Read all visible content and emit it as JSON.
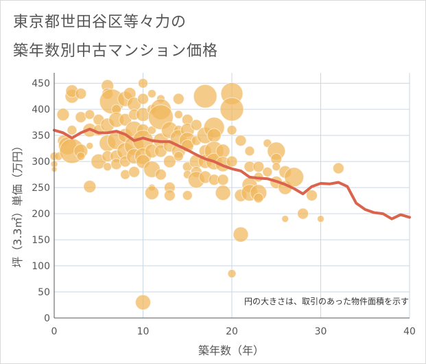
{
  "title_line1": "東京都世田谷区等々力の",
  "title_line2": "築年数別中古マンション価格",
  "chart_data": {
    "type": "scatter",
    "xlabel": "築年数（年）",
    "ylabel": "坪（3.3㎡）単価（万円）",
    "xlim": [
      0,
      40
    ],
    "ylim": [
      0,
      470
    ],
    "xticks": [
      0,
      10,
      20,
      30,
      40
    ],
    "yticks": [
      0,
      50,
      100,
      150,
      200,
      250,
      300,
      350,
      400,
      450
    ],
    "grid": true,
    "note": "円の大きさは、取引のあった物件面積を示す",
    "colors": {
      "bubble": "#f0b75b",
      "line": "#d9634c",
      "grid": "#c9d6e6",
      "axis": "#555555"
    },
    "series": [
      {
        "type": "scatter",
        "points": [
          [
            0,
            310,
            6
          ],
          [
            0,
            295,
            5
          ],
          [
            0,
            285,
            4
          ],
          [
            0.5,
            310,
            6
          ],
          [
            1,
            390,
            9
          ],
          [
            1,
            340,
            8
          ],
          [
            1.5,
            330,
            13
          ],
          [
            2,
            425,
            10
          ],
          [
            2,
            435,
            9
          ],
          [
            2,
            360,
            7
          ],
          [
            2,
            320,
            18
          ],
          [
            3,
            430,
            8
          ],
          [
            3,
            385,
            8
          ],
          [
            3,
            320,
            10
          ],
          [
            3,
            310,
            6
          ],
          [
            4,
            390,
            7
          ],
          [
            4,
            360,
            10
          ],
          [
            4,
            330,
            5
          ],
          [
            4,
            252,
            9
          ],
          [
            5,
            380,
            8
          ],
          [
            5,
            300,
            11
          ],
          [
            5,
            360,
            8
          ],
          [
            6,
            445,
            9
          ],
          [
            6,
            430,
            8
          ],
          [
            6,
            370,
            10
          ],
          [
            6,
            335,
            12
          ],
          [
            6,
            310,
            8
          ],
          [
            6,
            290,
            6
          ],
          [
            6.5,
            415,
            18
          ],
          [
            7,
            400,
            7
          ],
          [
            7,
            380,
            11
          ],
          [
            7,
            340,
            13
          ],
          [
            7,
            310,
            9
          ],
          [
            7,
            295,
            8
          ],
          [
            8,
            420,
            11
          ],
          [
            8,
            380,
            9
          ],
          [
            8,
            350,
            10
          ],
          [
            8,
            320,
            12
          ],
          [
            8,
            300,
            8
          ],
          [
            8,
            275,
            7
          ],
          [
            8.5,
            430,
            9
          ],
          [
            9,
            410,
            10
          ],
          [
            9,
            390,
            8
          ],
          [
            9,
            360,
            13
          ],
          [
            9,
            330,
            14
          ],
          [
            9,
            310,
            11
          ],
          [
            9,
            280,
            8
          ],
          [
            10,
            450,
            7
          ],
          [
            10,
            420,
            8
          ],
          [
            10,
            390,
            10
          ],
          [
            10,
            360,
            9
          ],
          [
            10,
            340,
            15
          ],
          [
            10,
            310,
            12
          ],
          [
            10,
            300,
            10
          ],
          [
            10,
            30,
            11
          ],
          [
            11,
            430,
            6
          ],
          [
            11,
            400,
            7
          ],
          [
            11,
            360,
            6
          ],
          [
            11,
            320,
            10
          ],
          [
            11,
            285,
            12
          ],
          [
            11,
            250,
            5
          ],
          [
            11,
            240,
            10
          ],
          [
            12,
            420,
            6
          ],
          [
            12,
            400,
            15
          ],
          [
            12,
            385,
            18
          ],
          [
            12,
            340,
            11
          ],
          [
            12,
            320,
            9
          ],
          [
            12,
            275,
            8
          ],
          [
            13,
            360,
            12
          ],
          [
            13,
            330,
            9
          ],
          [
            13,
            300,
            9
          ],
          [
            13,
            250,
            8
          ],
          [
            13,
            235,
            8
          ],
          [
            14,
            420,
            8
          ],
          [
            14,
            390,
            6
          ],
          [
            14,
            360,
            7
          ],
          [
            14,
            345,
            12
          ],
          [
            14,
            320,
            10
          ],
          [
            14,
            310,
            7
          ],
          [
            15,
            380,
            8
          ],
          [
            15,
            360,
            10
          ],
          [
            15,
            340,
            12
          ],
          [
            15,
            330,
            9
          ],
          [
            15,
            290,
            7
          ],
          [
            15,
            275,
            6
          ],
          [
            15,
            235,
            7
          ],
          [
            16,
            370,
            8
          ],
          [
            16,
            340,
            7
          ],
          [
            16,
            300,
            10
          ],
          [
            16,
            280,
            8
          ],
          [
            16,
            265,
            12
          ],
          [
            17,
            425,
            17
          ],
          [
            17,
            350,
            12
          ],
          [
            17,
            320,
            9
          ],
          [
            17,
            300,
            10
          ],
          [
            17,
            270,
            9
          ],
          [
            18,
            365,
            15
          ],
          [
            18,
            350,
            10
          ],
          [
            18,
            320,
            14
          ],
          [
            18,
            300,
            12
          ],
          [
            18,
            265,
            8
          ],
          [
            19,
            320,
            10
          ],
          [
            19,
            295,
            11
          ],
          [
            19,
            265,
            8
          ],
          [
            19,
            240,
            11
          ],
          [
            20,
            430,
            16
          ],
          [
            20,
            400,
            17
          ],
          [
            20,
            360,
            7
          ],
          [
            20,
            300,
            8
          ],
          [
            20,
            85,
            6
          ],
          [
            21,
            340,
            8
          ],
          [
            21,
            235,
            9
          ],
          [
            21,
            160,
            11
          ],
          [
            22,
            320,
            7
          ],
          [
            22,
            290,
            8
          ],
          [
            22,
            255,
            11
          ],
          [
            22,
            240,
            12
          ],
          [
            23,
            290,
            8
          ],
          [
            23,
            270,
            7
          ],
          [
            23,
            240,
            12
          ],
          [
            23,
            230,
            7
          ],
          [
            24,
            335,
            6
          ],
          [
            24,
            280,
            7
          ],
          [
            25,
            320,
            13
          ],
          [
            25,
            305,
            8
          ],
          [
            25,
            290,
            6
          ],
          [
            25,
            260,
            9
          ],
          [
            26,
            280,
            9
          ],
          [
            26,
            250,
            10
          ],
          [
            26,
            190,
            5
          ],
          [
            27,
            270,
            14
          ],
          [
            28,
            200,
            8
          ],
          [
            29,
            235,
            8
          ],
          [
            30,
            190,
            5
          ],
          [
            32,
            287,
            8
          ]
        ]
      },
      {
        "type": "line",
        "x": [
          0,
          1,
          2,
          3,
          4,
          5,
          6,
          7,
          8,
          9,
          10,
          11,
          12,
          13,
          14,
          15,
          16,
          17,
          18,
          19,
          20,
          21,
          22,
          23,
          24,
          25,
          26,
          27,
          28,
          29,
          30,
          31,
          32,
          33,
          34,
          35,
          36,
          37,
          38,
          39,
          40
        ],
        "y": [
          360,
          355,
          345,
          355,
          362,
          355,
          355,
          358,
          352,
          340,
          345,
          340,
          338,
          338,
          330,
          322,
          313,
          305,
          300,
          292,
          286,
          282,
          270,
          268,
          267,
          262,
          256,
          248,
          238,
          252,
          258,
          257,
          260,
          252,
          220,
          208,
          202,
          200,
          190,
          198,
          193
        ]
      }
    ]
  }
}
